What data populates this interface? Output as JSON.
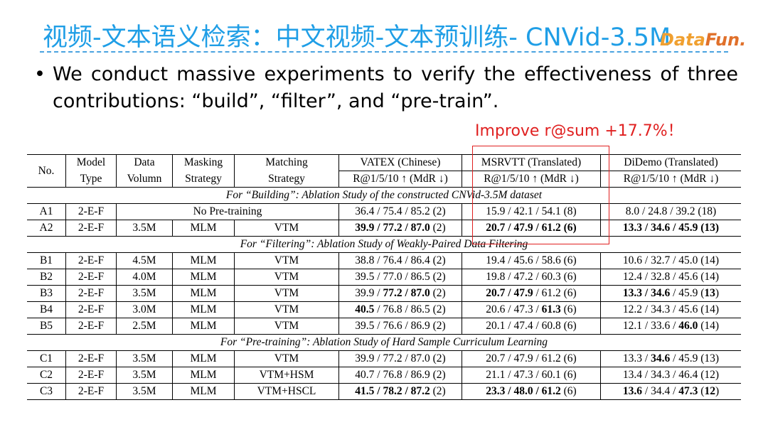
{
  "slide": {
    "title": "视频-文本语义检索：中文视频-文本预训练- CNVid-3.5M",
    "logo": {
      "data": "Data",
      "fun": "Fun."
    },
    "bullet": "We conduct massive experiments to verify the effectiveness of three contributions: “build”, “filter”, and “pre-train”.",
    "improve_note": "Improve r@sum  +17.7%！"
  },
  "table": {
    "headers": {
      "no": "No.",
      "model1": "Model",
      "model2": "Type",
      "data1": "Data",
      "data2": "Volumn",
      "mask1": "Masking",
      "mask2": "Strategy",
      "match1": "Matching",
      "match2": "Strategy",
      "vatex1": "VATEX (Chinese)",
      "vatex2": "R@1/5/10 ↑ (MdR ↓)",
      "msr1": "MSRVTT (Translated)",
      "msr2": "R@1/5/10 ↑ (MdR ↓)",
      "didemo1": "DiDemo (Translated)",
      "didemo2": "R@1/5/10 ↑ (MdR ↓)"
    },
    "sections": {
      "a": "For “Building”: Ablation Study of the constructed CNVid-3.5M dataset",
      "b": "For “Filtering”: Ablation Study of Weakly-Paired Data Filtering",
      "c": "For “Pre-training”: Ablation Study of Hard Sample Curriculum Learning"
    },
    "rows": {
      "a1": {
        "no": "A1",
        "type": "2-E-F",
        "nopre": "No Pre-training",
        "v": "36.4 / 75.4 / 85.2 (2)",
        "m": "15.9 / 42.1 / 54.1 (8)",
        "d": "8.0 / 24.8 / 39.2 (18)"
      },
      "a2": {
        "no": "A2",
        "type": "2-E-F",
        "vol": "3.5M",
        "mask": "MLM",
        "match": "VTM",
        "v_b": "39.9 / 77.2 / 87.0",
        "v_r": " (2)",
        "m_b": "20.7 / 47.9 / 61.2",
        "m_r": " (6)",
        "d_b": "13.3 / 34.6 / 45.9 (13)"
      },
      "b1": {
        "no": "B1",
        "type": "2-E-F",
        "vol": "4.5M",
        "mask": "MLM",
        "match": "VTM",
        "v": "38.8 / 76.4 / 86.4 (2)",
        "m": "19.4 / 45.6 / 58.6 (6)",
        "d": "10.6 / 32.7 / 45.0 (14)"
      },
      "b2": {
        "no": "B2",
        "type": "2-E-F",
        "vol": "4.0M",
        "mask": "MLM",
        "match": "VTM",
        "v": "39.5 / 77.0 / 86.5 (2)",
        "m": "19.8 / 47.2 / 60.3 (6)",
        "d": "12.4 / 32.8 / 45.6 (14)"
      },
      "b3": {
        "no": "B3",
        "type": "2-E-F",
        "vol": "3.5M",
        "mask": "MLM",
        "match": "VTM",
        "v1": "39.9 / ",
        "v2": "77.2 / 87.0",
        "v3": " (2)",
        "m1": "20.7 / 47.9",
        "m2": " / 61.2 (6)",
        "d1": "13.3 / 34.6",
        "d2": " / 45.9 (",
        "d3": "13",
        "d4": ")"
      },
      "b4": {
        "no": "B4",
        "type": "2-E-F",
        "vol": "3.0M",
        "mask": "MLM",
        "match": "VTM",
        "v1": "40.5",
        "v2": " / 76.8 / 86.5 (2)",
        "m1": "20.6 / 47.3 / ",
        "m2": "61.3",
        "m3": " (6)",
        "d": "12.2 / 34.3 / 45.6 (14)"
      },
      "b5": {
        "no": "B5",
        "type": "2-E-F",
        "vol": "2.5M",
        "mask": "MLM",
        "match": "VTM",
        "v": "39.5 / 76.6 / 86.9 (2)",
        "m": "20.1 / 47.4 / 60.8 (6)",
        "d1": "12.1 / 33.6 / ",
        "d2": "46.0",
        "d3": " (14)"
      },
      "c1": {
        "no": "C1",
        "type": "2-E-F",
        "vol": "3.5M",
        "mask": "MLM",
        "match": "VTM",
        "v": "39.9 / 77.2 / 87.0 (2)",
        "m": "20.7 / 47.9 / 61.2 (6)",
        "d1": "13.3 / ",
        "d2": "34.6",
        "d3": " / 45.9 (13)"
      },
      "c2": {
        "no": "C2",
        "type": "2-E-F",
        "vol": "3.5M",
        "mask": "MLM",
        "match": "VTM+HSM",
        "v": "40.7 / 76.8 / 86.9 (2)",
        "m": "21.1 / 47.3 / 60.1 (6)",
        "d": "13.4 / 34.3 / 46.4 (12)"
      },
      "c3": {
        "no": "C3",
        "type": "2-E-F",
        "vol": "3.5M",
        "mask": "MLM",
        "match": "VTM+HSCL",
        "v_b": "41.5 / 78.2 / 87.2",
        "v_r": " (2)",
        "m_b": "23.3 / 48.0 / 61.2",
        "m_r": " (6)",
        "d1": "13.6",
        "d2": " / 34.4 / ",
        "d3": "47.3",
        "d4": " (",
        "d5": "12",
        "d6": ")"
      }
    }
  },
  "colors": {
    "title": "#1f9ee6",
    "accent_red": "#e02020",
    "dash": "#4aa3e0"
  }
}
